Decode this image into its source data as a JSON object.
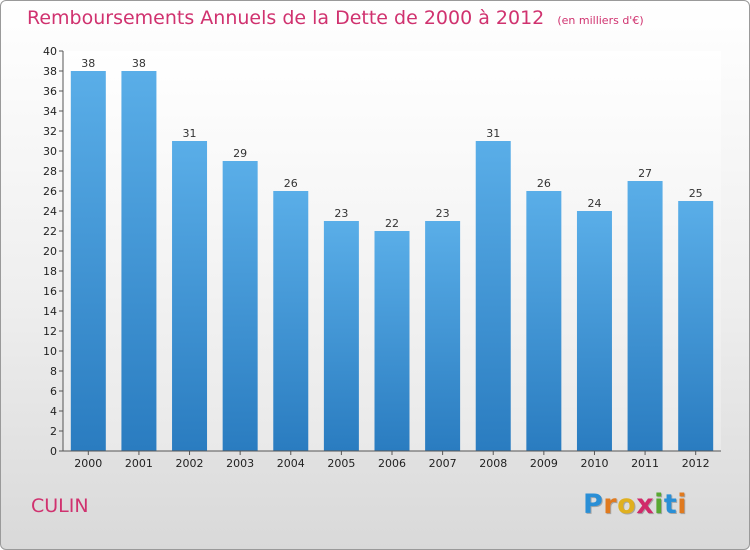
{
  "chart_data": {
    "type": "bar",
    "title": "Remboursements Annuels de la Dette de 2000 à 2012",
    "unit_note": "(en milliers d'€)",
    "categories": [
      "2000",
      "2001",
      "2002",
      "2003",
      "2004",
      "2005",
      "2006",
      "2007",
      "2008",
      "2009",
      "2010",
      "2011",
      "2012"
    ],
    "values": [
      38,
      38,
      31,
      29,
      26,
      23,
      22,
      23,
      31,
      26,
      24,
      27,
      25
    ],
    "ylim": [
      0,
      40
    ],
    "ytick_step": 2,
    "grid": false,
    "bar_color_top": "#5aaee8",
    "bar_color_bottom": "#2a7cc0"
  },
  "footer": {
    "commune": "CULIN",
    "logo_letters": [
      {
        "ch": "P",
        "color": "#2a8fd6"
      },
      {
        "ch": "r",
        "color": "#e07a1f"
      },
      {
        "ch": "o",
        "color": "#e0b01f"
      },
      {
        "ch": "x",
        "color": "#d02a6a"
      },
      {
        "ch": "i",
        "color": "#59a832"
      },
      {
        "ch": "t",
        "color": "#2a8fd6"
      },
      {
        "ch": "i",
        "color": "#e07a1f"
      }
    ]
  }
}
